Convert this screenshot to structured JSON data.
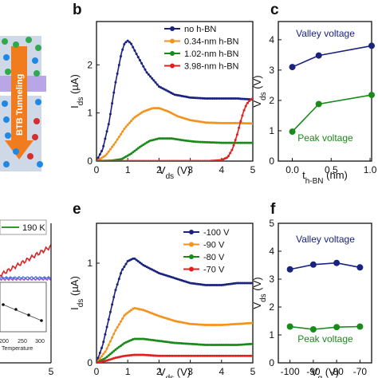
{
  "panel_labels": {
    "b": "b",
    "c": "c",
    "e": "e",
    "f": "f"
  },
  "schematic": {
    "label": "BTB Tunneling"
  },
  "partial_panel": {
    "legend": "190 K",
    "xticks": [
      "5"
    ],
    "inset_xticks": [
      "200",
      "250",
      "300"
    ],
    "inset_xlabel": "Temperature",
    "colors": {
      "legend": "#2a9d2a",
      "red": "#e02020",
      "purple": "#9b59d0",
      "blue": "#2a6fdb"
    }
  },
  "chart_data": [
    {
      "id": "b",
      "type": "line",
      "title": "",
      "xlabel": "V_ds (V)",
      "ylabel": "I_ds (µA)",
      "xlim": [
        0,
        5
      ],
      "ylim": [
        0,
        2.9
      ],
      "xticks": [
        "0",
        "1",
        "2",
        "3",
        "4",
        "5"
      ],
      "yticks": [
        "0",
        "1",
        "2"
      ],
      "legend_position": "top-right",
      "series": [
        {
          "name": "no h-BN",
          "color": "#1a237e",
          "x": [
            0,
            0.2,
            0.4,
            0.6,
            0.8,
            0.9,
            1.0,
            1.1,
            1.3,
            1.6,
            2.0,
            2.5,
            3.0,
            3.5,
            4.0,
            4.5,
            5.0
          ],
          "y": [
            0,
            0.25,
            0.8,
            1.6,
            2.25,
            2.45,
            2.5,
            2.45,
            2.2,
            1.85,
            1.55,
            1.38,
            1.32,
            1.3,
            1.3,
            1.3,
            1.28
          ]
        },
        {
          "name": "0.34-nm h-BN",
          "color": "#f4921e",
          "x": [
            0,
            0.3,
            0.6,
            0.9,
            1.2,
            1.5,
            1.8,
            2.0,
            2.3,
            2.6,
            3.0,
            3.5,
            4.0,
            4.5,
            5.0
          ],
          "y": [
            0,
            0.12,
            0.38,
            0.68,
            0.9,
            1.03,
            1.1,
            1.1,
            1.03,
            0.93,
            0.85,
            0.8,
            0.79,
            0.79,
            0.78
          ]
        },
        {
          "name": "1.02-nm h-BN",
          "color": "#1a8a1a",
          "x": [
            0,
            0.5,
            0.8,
            1.1,
            1.4,
            1.7,
            2.0,
            2.4,
            2.8,
            3.2,
            3.6,
            4.0,
            4.5,
            5.0
          ],
          "y": [
            0,
            0.01,
            0.04,
            0.15,
            0.3,
            0.42,
            0.47,
            0.47,
            0.43,
            0.4,
            0.39,
            0.38,
            0.38,
            0.38
          ]
        },
        {
          "name": "3.98-nm h-BN",
          "color": "#e02020",
          "x": [
            0,
            1,
            2,
            3,
            3.6,
            4.0,
            4.2,
            4.35,
            4.5,
            4.6,
            4.7,
            4.8,
            4.9,
            5.0
          ],
          "y": [
            0,
            0,
            0,
            0,
            0,
            0.02,
            0.08,
            0.25,
            0.55,
            0.8,
            1.02,
            1.18,
            1.26,
            1.3
          ]
        }
      ]
    },
    {
      "id": "c",
      "type": "line",
      "title": "",
      "xlabel": "t_h-BN (nm)",
      "ylabel": "V_ds (V)",
      "xlim": [
        -0.18,
        1.02
      ],
      "ylim": [
        0,
        4.6
      ],
      "xticks": [
        "0.0",
        "0.5",
        "1.0"
      ],
      "yticks": [
        "0",
        "1",
        "2",
        "3",
        "4"
      ],
      "series": [
        {
          "name": "Valley voltage",
          "color": "#1a237e",
          "x": [
            0,
            0.34,
            1.02
          ],
          "y": [
            3.1,
            3.48,
            3.8
          ]
        },
        {
          "name": "Peak voltage",
          "color": "#1a8a1a",
          "x": [
            0,
            0.34,
            1.02
          ],
          "y": [
            0.97,
            1.88,
            2.18
          ]
        }
      ]
    },
    {
      "id": "e",
      "type": "line",
      "title": "",
      "xlabel": "V_ds (V)",
      "ylabel": "I_ds (µA)",
      "xlim": [
        0,
        5
      ],
      "ylim": [
        0,
        1.4
      ],
      "xticks": [
        "0",
        "1",
        "2",
        "3",
        "4",
        "5"
      ],
      "yticks": [
        "0",
        "1"
      ],
      "legend_position": "top-right",
      "series": [
        {
          "name": "-100 V",
          "color": "#1a237e",
          "x": [
            0,
            0.2,
            0.4,
            0.6,
            0.8,
            1.0,
            1.2,
            1.5,
            2.0,
            2.5,
            3.0,
            3.5,
            4.0,
            4.5,
            5.0
          ],
          "y": [
            0,
            0.18,
            0.45,
            0.72,
            0.92,
            1.02,
            1.05,
            0.98,
            0.9,
            0.85,
            0.8,
            0.78,
            0.78,
            0.8,
            0.8
          ]
        },
        {
          "name": "-90 V",
          "color": "#f4921e",
          "x": [
            0,
            0.3,
            0.6,
            0.9,
            1.2,
            1.5,
            2.0,
            2.5,
            3.0,
            3.5,
            4.0,
            4.5,
            5.0
          ],
          "y": [
            0,
            0.12,
            0.32,
            0.48,
            0.55,
            0.53,
            0.47,
            0.42,
            0.39,
            0.38,
            0.38,
            0.39,
            0.4
          ]
        },
        {
          "name": "-80 V",
          "color": "#1a8a1a",
          "x": [
            0,
            0.3,
            0.6,
            0.9,
            1.2,
            1.5,
            2.0,
            2.5,
            3.0,
            3.5,
            4.0,
            4.5,
            5.0
          ],
          "y": [
            0,
            0.05,
            0.13,
            0.2,
            0.24,
            0.24,
            0.22,
            0.2,
            0.19,
            0.18,
            0.18,
            0.18,
            0.19
          ]
        },
        {
          "name": "-70 V",
          "color": "#e02020",
          "x": [
            0,
            0.3,
            0.6,
            0.9,
            1.2,
            1.5,
            2.0,
            2.5,
            3.0,
            4.0,
            5.0
          ],
          "y": [
            0,
            0.02,
            0.05,
            0.07,
            0.08,
            0.08,
            0.07,
            0.07,
            0.07,
            0.07,
            0.07
          ]
        }
      ]
    },
    {
      "id": "f",
      "type": "line",
      "title": "",
      "xlabel": "V_g (V)",
      "ylabel": "V_ds (V)",
      "xlim": [
        -105,
        -65
      ],
      "ylim": [
        0,
        5
      ],
      "xticks": [
        "-100",
        "-90",
        "-80",
        "-70"
      ],
      "yticks": [
        "0",
        "1",
        "2",
        "3",
        "4",
        "5"
      ],
      "series": [
        {
          "name": "Valley voltage",
          "color": "#1a237e",
          "x": [
            -100,
            -90,
            -80,
            -70
          ],
          "y": [
            3.35,
            3.52,
            3.58,
            3.42
          ]
        },
        {
          "name": "Peak voltage",
          "color": "#1a8a1a",
          "x": [
            -100,
            -90,
            -80,
            -70
          ],
          "y": [
            1.3,
            1.2,
            1.28,
            1.3
          ]
        }
      ]
    }
  ]
}
